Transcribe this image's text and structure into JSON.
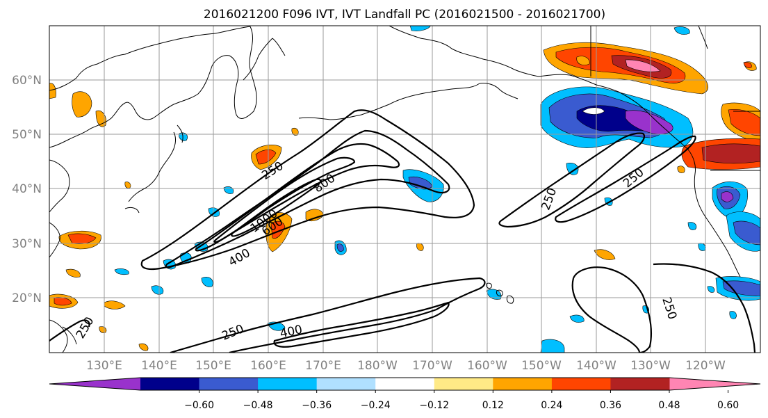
{
  "title": "2016021200 F096 IVT, IVT Landfall PC (2016021500 - 2016021700)",
  "lat_labels": [
    "60°N",
    "50°N",
    "40°N",
    "30°N",
    "20°N"
  ],
  "lon_labels": [
    "130°E",
    "140°E",
    "150°E",
    "160°E",
    "170°E",
    "180°W",
    "170°W",
    "160°W",
    "150°W",
    "140°W",
    "130°W",
    "120°W"
  ],
  "contour_labels": [
    "250",
    "400",
    "600",
    "800",
    "1000",
    "250",
    "250",
    "250",
    "250",
    "400",
    "250"
  ],
  "colorbar": {
    "colors": [
      "#9932cc",
      "#00008b",
      "#3a5bd0",
      "#00bfff",
      "#b0e0ff",
      "#ffffff",
      "#ffea86",
      "#ffa500",
      "#ff4500",
      "#b22222",
      "#ff85b3"
    ],
    "tick_labels": [
      "−0.60",
      "−0.48",
      "−0.36",
      "−0.24",
      "−0.12",
      "0.12",
      "0.24",
      "0.36",
      "0.48",
      "0.60"
    ]
  },
  "map": {
    "projection": "PlateCarree",
    "extent": {
      "lon": [
        120,
        245
      ],
      "lat": [
        10,
        70
      ]
    },
    "variables": [
      "IVT (contours)",
      "IVT Landfall PC (shaded)"
    ]
  }
}
